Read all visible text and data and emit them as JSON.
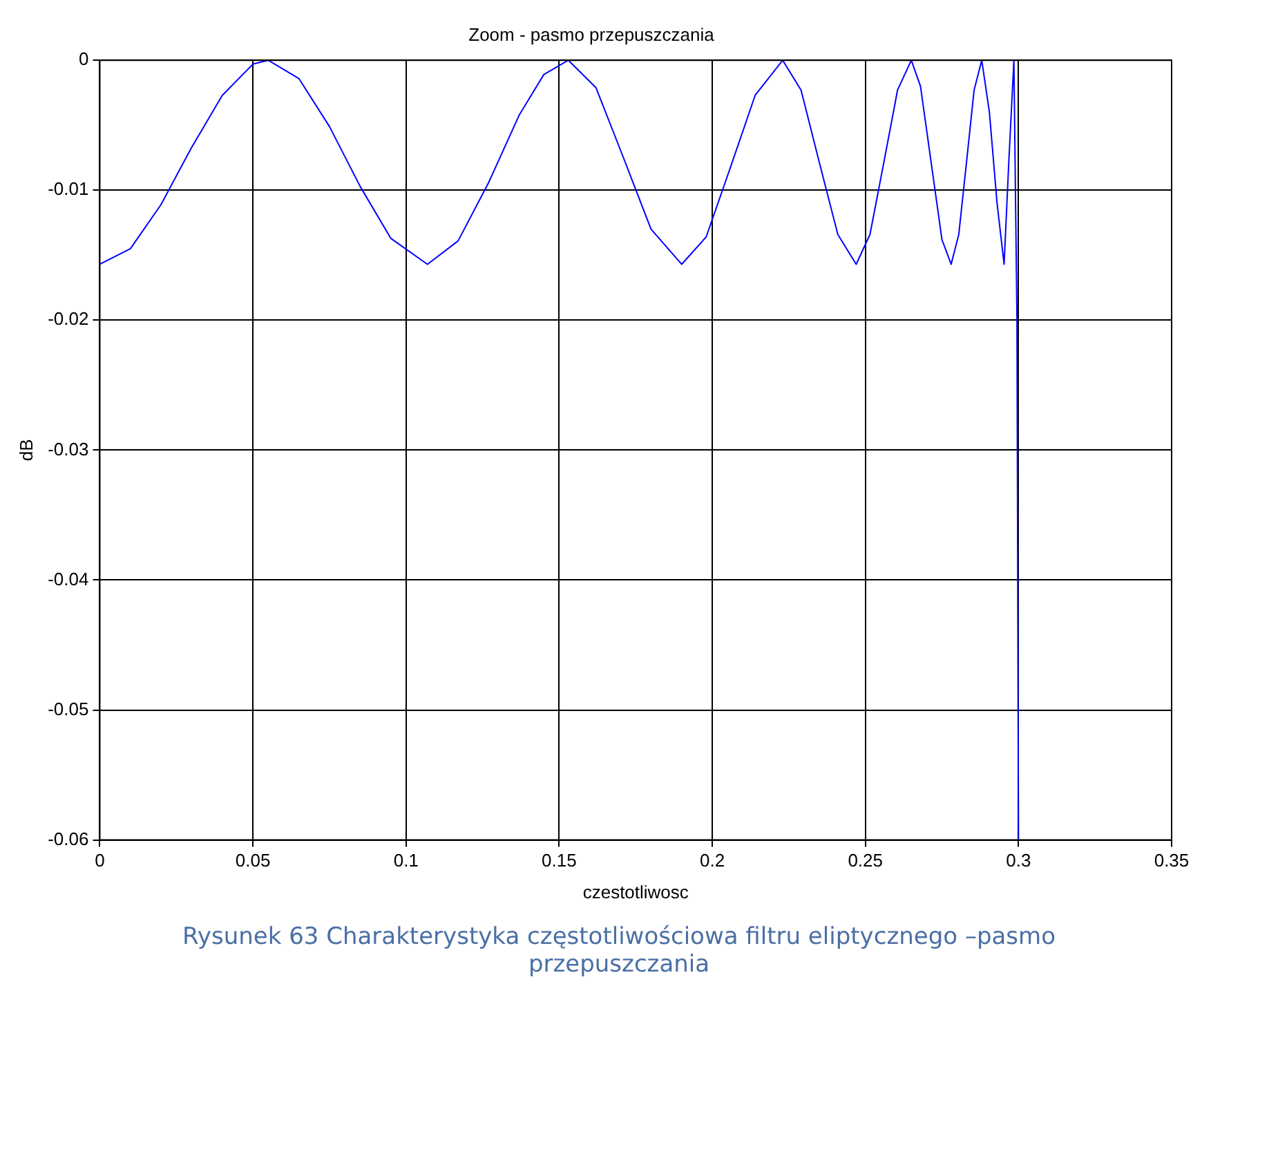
{
  "chart_data": {
    "type": "line",
    "title": "Zoom - pasmo przepuszczania",
    "xlabel": "czestotliwosc",
    "ylabel": "dB",
    "x": [
      0,
      0.01,
      0.02,
      0.03,
      0.04,
      0.05,
      0.055,
      0.065,
      0.075,
      0.085,
      0.095,
      0.107,
      0.117,
      0.127,
      0.137,
      0.145,
      0.153,
      0.162,
      0.171,
      0.18,
      0.19,
      0.198,
      0.206,
      0.214,
      0.223,
      0.229,
      0.235,
      0.241,
      0.247,
      0.2515,
      0.256,
      0.2605,
      0.265,
      0.268,
      0.2715,
      0.275,
      0.278,
      0.2805,
      0.283,
      0.2855,
      0.288,
      0.2905,
      0.293,
      0.2953,
      0.2968,
      0.2985,
      0.2995,
      0.3
    ],
    "series": [
      {
        "color": "#0000ff",
        "values": [
          -0.0157,
          -0.0145,
          -0.0111,
          -0.0067,
          -0.0027,
          -0.0003,
          0,
          -0.0014,
          -0.0051,
          -0.0097,
          -0.0137,
          -0.0157,
          -0.0139,
          -0.0094,
          -0.0042,
          -0.0011,
          0,
          -0.0021,
          -0.0075,
          -0.013,
          -0.0157,
          -0.0136,
          -0.0082,
          -0.0027,
          0,
          -0.0023,
          -0.0079,
          -0.0134,
          -0.0157,
          -0.0134,
          -0.0079,
          -0.0023,
          0,
          -0.002,
          -0.0079,
          -0.0138,
          -0.0157,
          -0.0134,
          -0.0079,
          -0.0023,
          0,
          -0.004,
          -0.011,
          -0.0157,
          -0.008,
          0,
          -0.02,
          -0.06
        ]
      }
    ],
    "xlim": [
      0,
      0.35
    ],
    "xticks": [
      0,
      0.05,
      0.1,
      0.15,
      0.2,
      0.25,
      0.3,
      0.35
    ],
    "ylim": [
      -0.06,
      0
    ],
    "yticks": [
      -0.06,
      -0.05,
      -0.04,
      -0.03,
      -0.02,
      -0.01,
      0
    ],
    "grid": true,
    "legend": false,
    "marker": "none",
    "line_style": "solid",
    "annotations": [
      "Rysunek 63 Charakterystyka częstotliwościowa filtru eliptycznego –pasmo przepuszczania"
    ]
  }
}
